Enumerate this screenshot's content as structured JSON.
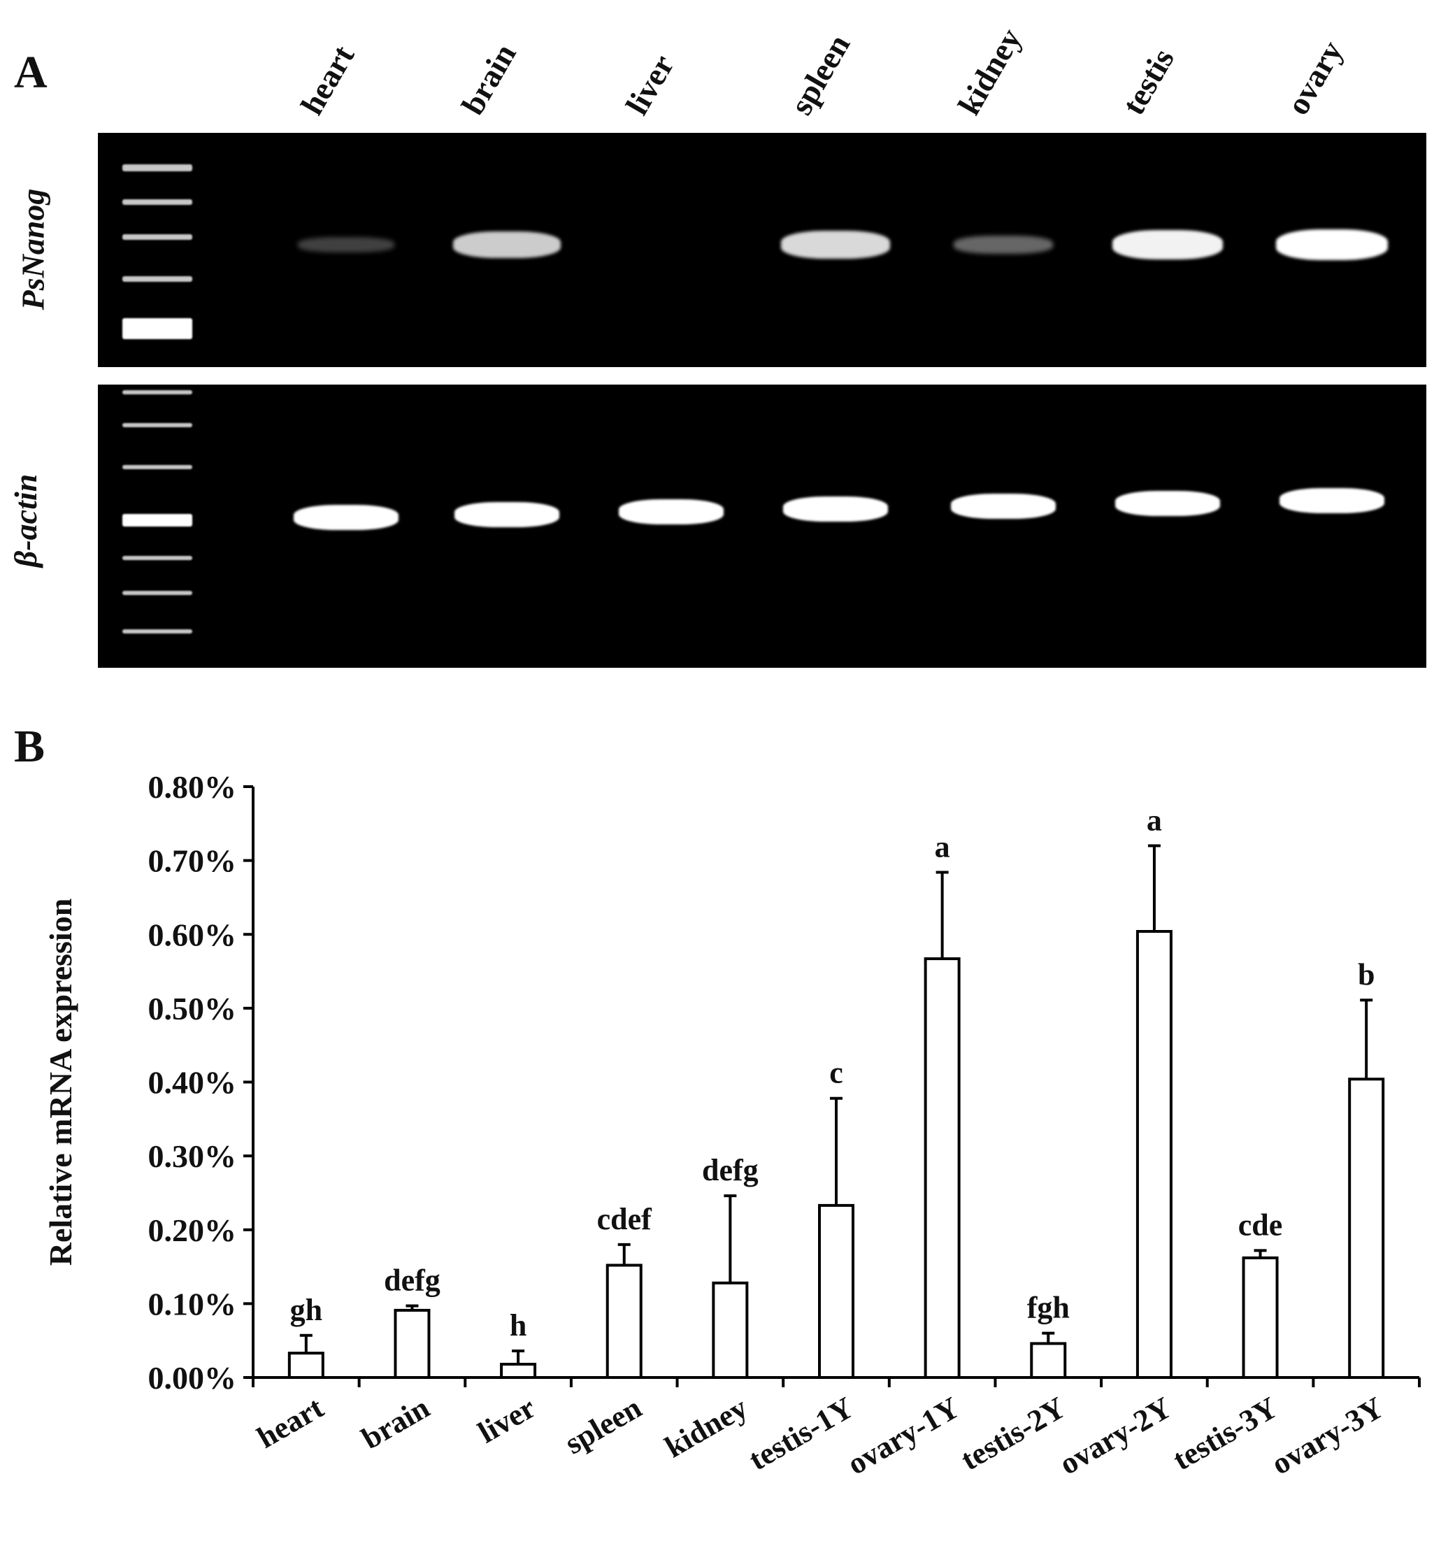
{
  "panel_a": {
    "letter": "A",
    "lanes": [
      "heart",
      "brain",
      "liver",
      "spleen",
      "kidney",
      "testis",
      "ovary"
    ],
    "gene_top": "PsNanog",
    "gene_bottom": "β-actin",
    "nanog_band_intensity": [
      0.25,
      0.8,
      0.0,
      0.85,
      0.4,
      0.95,
      1.0
    ],
    "actin_band_intensity": [
      1.0,
      1.0,
      1.0,
      1.0,
      1.0,
      1.0,
      1.0
    ]
  },
  "panel_b": {
    "letter": "B"
  },
  "chart_data": {
    "type": "bar",
    "categories": [
      "heart",
      "brain",
      "liver",
      "spleen",
      "kidney",
      "testis-1Y",
      "ovary-1Y",
      "testis-2Y",
      "ovary-2Y",
      "testis-3Y",
      "ovary-3Y"
    ],
    "values": [
      0.033,
      0.091,
      0.018,
      0.152,
      0.128,
      0.233,
      0.567,
      0.046,
      0.604,
      0.162,
      0.404
    ],
    "errors": [
      0.024,
      0.006,
      0.018,
      0.028,
      0.118,
      0.145,
      0.117,
      0.014,
      0.116,
      0.01,
      0.107
    ],
    "significance_labels": [
      "gh",
      "defg",
      "h",
      "cdef",
      "defg",
      "c",
      "a",
      "fgh",
      "a",
      "cde",
      "b"
    ],
    "ylabel": "Relative mRNA expression",
    "xlabel": "",
    "ylim": [
      0,
      0.8
    ],
    "yticks": [
      "0.00%",
      "0.10%",
      "0.20%",
      "0.30%",
      "0.40%",
      "0.50%",
      "0.60%",
      "0.70%",
      "0.80%"
    ],
    "bar_color": "#ffffff",
    "edge_color": "#000000"
  }
}
